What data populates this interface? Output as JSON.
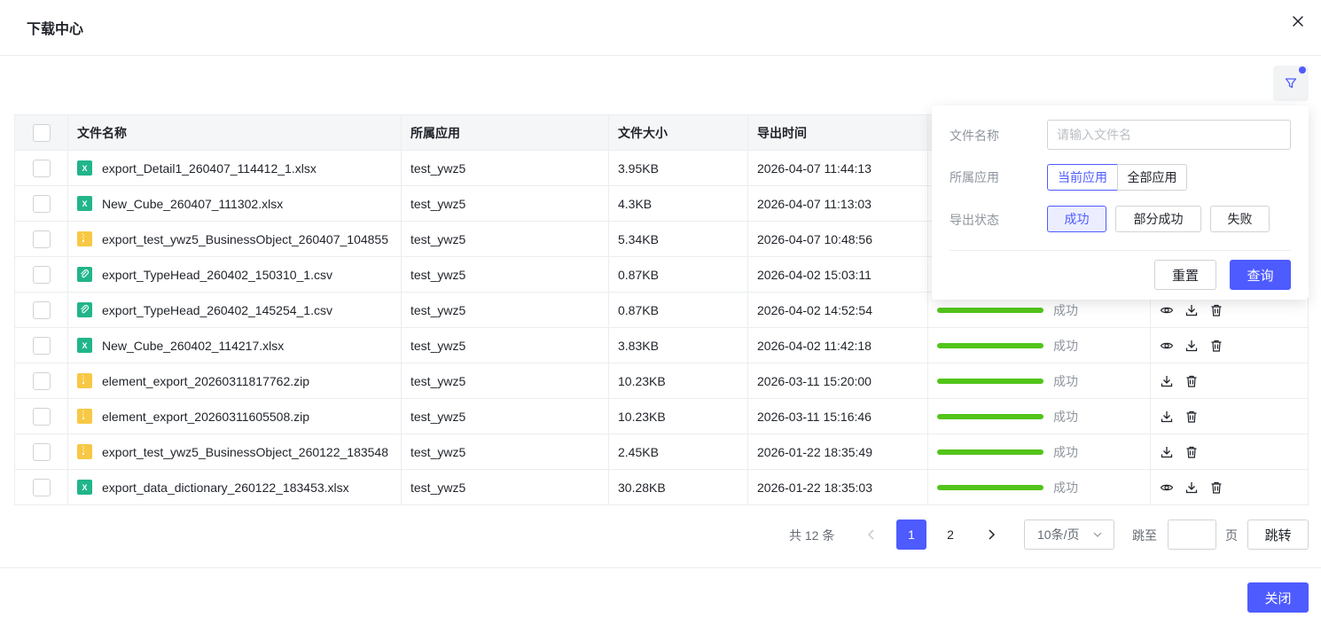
{
  "dialog": {
    "title": "下载中心"
  },
  "table": {
    "columns": [
      "文件名称",
      "所属应用",
      "文件大小",
      "导出时间",
      "",
      ""
    ],
    "rows": [
      {
        "name": "export_Detail1_260407_114412_1.xlsx",
        "type": "xlsx",
        "app": "test_ywz5",
        "size": "3.95KB",
        "time": "2026-04-07 11:44:13",
        "status": "",
        "actions": []
      },
      {
        "name": "New_Cube_260407_111302.xlsx",
        "type": "xlsx",
        "app": "test_ywz5",
        "size": "4.3KB",
        "time": "2026-04-07 11:13:03",
        "status": "",
        "actions": []
      },
      {
        "name": "export_test_ywz5_BusinessObject_260407_104855",
        "type": "zip",
        "app": "test_ywz5",
        "size": "5.34KB",
        "time": "2026-04-07 10:48:56",
        "status": "",
        "actions": []
      },
      {
        "name": "export_TypeHead_260402_150310_1.csv",
        "type": "csv",
        "app": "test_ywz5",
        "size": "0.87KB",
        "time": "2026-04-02 15:03:11",
        "status": "",
        "actions": []
      },
      {
        "name": "export_TypeHead_260402_145254_1.csv",
        "type": "csv",
        "app": "test_ywz5",
        "size": "0.87KB",
        "time": "2026-04-02 14:52:54",
        "status": "成功",
        "actions": [
          "eye",
          "download",
          "delete"
        ]
      },
      {
        "name": "New_Cube_260402_114217.xlsx",
        "type": "xlsx",
        "app": "test_ywz5",
        "size": "3.83KB",
        "time": "2026-04-02 11:42:18",
        "status": "成功",
        "actions": [
          "eye",
          "download",
          "delete"
        ]
      },
      {
        "name": "element_export_20260311817762.zip",
        "type": "zip",
        "app": "test_ywz5",
        "size": "10.23KB",
        "time": "2026-03-11 15:20:00",
        "status": "成功",
        "actions": [
          "download",
          "delete"
        ]
      },
      {
        "name": "element_export_20260311605508.zip",
        "type": "zip",
        "app": "test_ywz5",
        "size": "10.23KB",
        "time": "2026-03-11 15:16:46",
        "status": "成功",
        "actions": [
          "download",
          "delete"
        ]
      },
      {
        "name": "export_test_ywz5_BusinessObject_260122_183548",
        "type": "zip",
        "app": "test_ywz5",
        "size": "2.45KB",
        "time": "2026-01-22 18:35:49",
        "status": "成功",
        "actions": [
          "download",
          "delete"
        ]
      },
      {
        "name": "export_data_dictionary_260122_183453.xlsx",
        "type": "xlsx",
        "app": "test_ywz5",
        "size": "30.28KB",
        "time": "2026-01-22 18:35:03",
        "status": "成功",
        "actions": [
          "eye",
          "download",
          "delete"
        ]
      }
    ]
  },
  "filter": {
    "name_label": "文件名称",
    "name_placeholder": "请输入文件名",
    "name_value": "",
    "app_label": "所属应用",
    "app_current": "当前应用",
    "app_all": "全部应用",
    "status_label": "导出状态",
    "status_success": "成功",
    "status_partial": "部分成功",
    "status_failed": "失败",
    "reset": "重置",
    "query": "查询"
  },
  "pagination": {
    "total": "共 12 条",
    "pages": [
      "1",
      "2"
    ],
    "current": "1",
    "page_size": "10条/页",
    "jump_label": "跳至",
    "page_unit": "页",
    "jump_button": "跳转"
  },
  "footer": {
    "close": "关闭"
  },
  "colors": {
    "primary": "#4e5bff",
    "success": "#52c41a"
  }
}
